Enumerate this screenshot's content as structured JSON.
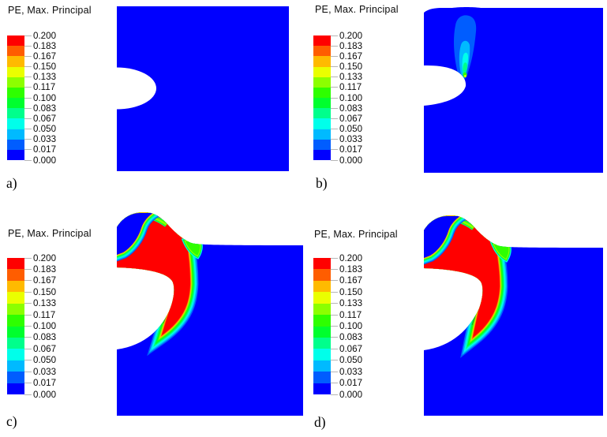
{
  "figure": {
    "title": "PE, Max. Principal",
    "panels": [
      {
        "id": "a",
        "label": "a)",
        "title": "PE, Max. Principal"
      },
      {
        "id": "b",
        "label": "b)",
        "title": "PE, Max. Principal"
      },
      {
        "id": "c",
        "label": "c)",
        "title": "PE, Max. Principal"
      },
      {
        "id": "d",
        "label": "d)",
        "title": "PE, Max. Principal"
      }
    ]
  },
  "legend": {
    "values": [
      "0.200",
      "0.183",
      "0.167",
      "0.150",
      "0.133",
      "0.117",
      "0.100",
      "0.083",
      "0.067",
      "0.050",
      "0.033",
      "0.017",
      "0.000"
    ],
    "colors": [
      "#ff0000",
      "#ff5d00",
      "#ffba00",
      "#eaff00",
      "#8cff00",
      "#2eff00",
      "#00ff2e",
      "#00ff8c",
      "#00ffea",
      "#00baff",
      "#005dff",
      "#0000ff"
    ],
    "tick_color": "#b6b6b6"
  },
  "chart_data": [
    {
      "type": "heatmap",
      "subtype": "FEA-contour-plot",
      "panel": "a",
      "title": "PE, Max. Principal",
      "colorbar_ticks": [
        0.2,
        0.183,
        0.167,
        0.15,
        0.133,
        0.117,
        0.1,
        0.083,
        0.067,
        0.05,
        0.033,
        0.017,
        0.0
      ],
      "value_range": [
        0.0,
        0.2
      ],
      "legend_position": "left",
      "description": "Square plate with semi-elliptical notch on left edge; entire domain uniform dark blue (PE = 0.000-0.017), no plastic strain."
    },
    {
      "type": "heatmap",
      "subtype": "FEA-contour-plot",
      "panel": "b",
      "title": "PE, Max. Principal",
      "colorbar_ticks": [
        0.2,
        0.183,
        0.167,
        0.15,
        0.133,
        0.117,
        0.1,
        0.083,
        0.067,
        0.05,
        0.033,
        0.017,
        0.0
      ],
      "value_range": [
        0.0,
        0.2
      ],
      "legend_position": "left",
      "description": "Narrow vertical plume of plastic strain (PE 0.017-0.033, locally 0.033-0.100 near tip, peak ~0.117-0.133 spot at notch tip) rising from the notch tip toward the top surface; rest of domain dark blue."
    },
    {
      "type": "heatmap",
      "subtype": "FEA-contour-plot",
      "panel": "c",
      "title": "PE, Max. Principal",
      "colorbar_ticks": [
        0.2,
        0.183,
        0.167,
        0.15,
        0.133,
        0.117,
        0.1,
        0.083,
        0.067,
        0.05,
        0.033,
        0.017,
        0.0
      ],
      "value_range": [
        0.0,
        0.2
      ],
      "legend_position": "left",
      "description": "Heavily deformed state: notch opened into wide mouth, top-left surface bulged upward; large red zone (PE >= 0.183) wrapping the notch up to the free surface, thin rainbow fringe bands to the far-field blue, low-strain blue pocket at bulged top-left corner, green pocket at shoulder."
    },
    {
      "type": "heatmap",
      "subtype": "FEA-contour-plot",
      "panel": "d",
      "title": "PE, Max. Principal",
      "colorbar_ticks": [
        0.2,
        0.183,
        0.167,
        0.15,
        0.133,
        0.117,
        0.1,
        0.083,
        0.067,
        0.05,
        0.033,
        0.017,
        0.0
      ],
      "value_range": [
        0.0,
        0.2
      ],
      "legend_position": "left",
      "description": "Same heavily deformed state as panel c with nearly identical red plastic zone around the opened notch, bulged top surface, blue corner pocket and fringe bands."
    }
  ]
}
